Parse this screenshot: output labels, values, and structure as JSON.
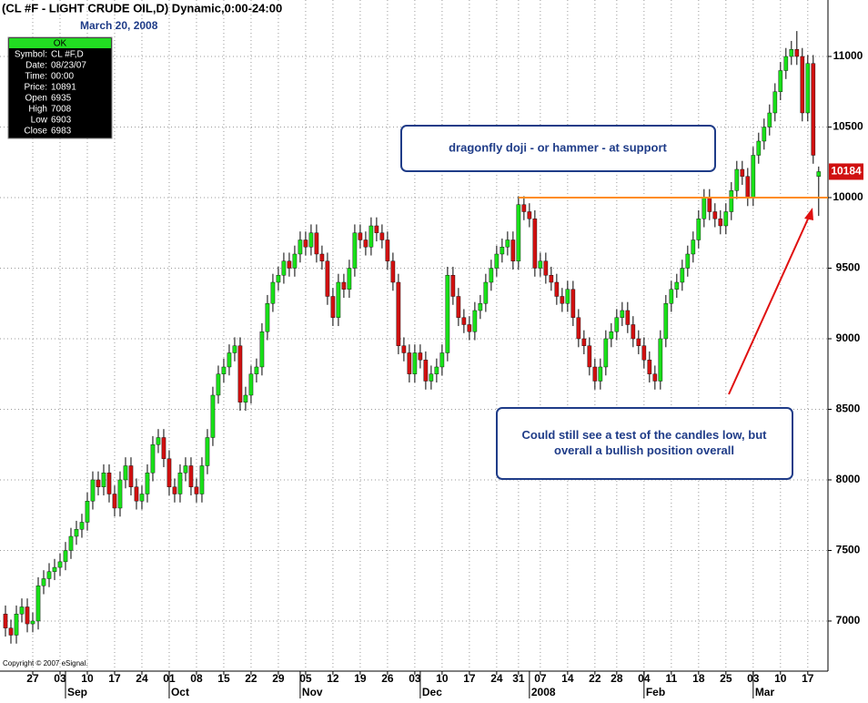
{
  "chart_data": {
    "type": "candlestick",
    "title": "(CL #F - LIGHT CRUDE OIL,D) Dynamic,0:00-24:00",
    "subtitle": "March 20, 2008",
    "copyright": "Copyright © 2007 eSignal.",
    "info_box": {
      "header": "OK",
      "rows": [
        {
          "label": "Symbol:",
          "value": "CL #F,D"
        },
        {
          "label": "Date:",
          "value": "08/23/07"
        },
        {
          "label": "Time:",
          "value": "00:00"
        },
        {
          "label": "Price:",
          "value": 10891
        },
        {
          "label": "Open",
          "value": 6935
        },
        {
          "label": "High",
          "value": 7008
        },
        {
          "label": "Low",
          "value": 6903
        },
        {
          "label": "Close",
          "value": 6983
        }
      ]
    },
    "annotations": [
      {
        "lines": [
          "dragonfly doji - or hammer - at support"
        ]
      },
      {
        "lines": [
          "Could still see a test of the candles low, but",
          "overall a bullish position overall"
        ]
      }
    ],
    "last_price": 10184,
    "support_line": {
      "value": 10000,
      "color": "#ff8c1a"
    },
    "up_color": "#19e019",
    "down_color": "#d01010",
    "ylim": [
      6645,
      11400
    ],
    "yticks": [
      7000,
      7500,
      8000,
      8500,
      9000,
      9500,
      10000,
      10500,
      11000
    ],
    "xlim": [
      -1,
      150.7
    ],
    "xticks": [
      {
        "value": 5,
        "label": "27"
      },
      {
        "value": 10,
        "label": "03"
      },
      {
        "value": 15,
        "label": "10"
      },
      {
        "value": 20,
        "label": "17"
      },
      {
        "value": 25,
        "label": "24"
      },
      {
        "value": 30,
        "label": "01"
      },
      {
        "value": 35,
        "label": "08"
      },
      {
        "value": 40,
        "label": "15"
      },
      {
        "value": 45,
        "label": "22"
      },
      {
        "value": 50,
        "label": "29"
      },
      {
        "value": 55,
        "label": "05"
      },
      {
        "value": 60,
        "label": "12"
      },
      {
        "value": 65,
        "label": "19"
      },
      {
        "value": 70,
        "label": "26"
      },
      {
        "value": 75,
        "label": "03"
      },
      {
        "value": 80,
        "label": "10"
      },
      {
        "value": 85,
        "label": "17"
      },
      {
        "value": 90,
        "label": "24"
      },
      {
        "value": 94,
        "label": "31"
      },
      {
        "value": 98,
        "label": "07"
      },
      {
        "value": 103,
        "label": "14"
      },
      {
        "value": 108,
        "label": "22"
      },
      {
        "value": 112,
        "label": "28"
      },
      {
        "value": 117,
        "label": "04"
      },
      {
        "value": 122,
        "label": "11"
      },
      {
        "value": 127,
        "label": "18"
      },
      {
        "value": 132,
        "label": "25"
      },
      {
        "value": 137,
        "label": "03"
      },
      {
        "value": 142,
        "label": "10"
      },
      {
        "value": 147,
        "label": "17"
      }
    ],
    "month_ticks": [
      {
        "value": 11,
        "label": "Sep"
      },
      {
        "value": 30,
        "label": "Oct"
      },
      {
        "value": 54,
        "label": "Nov"
      },
      {
        "value": 76,
        "label": "Dec"
      },
      {
        "value": 96,
        "label": "2008"
      },
      {
        "value": 117,
        "label": "Feb"
      },
      {
        "value": 137,
        "label": "Mar"
      }
    ],
    "open": [
      7050,
      6950,
      6900,
      7050,
      7100,
      6980,
      7000,
      7250,
      7300,
      7350,
      7380,
      7420,
      7500,
      7600,
      7650,
      7700,
      7850,
      8000,
      7950,
      8050,
      7900,
      7800,
      8000,
      8100,
      7950,
      7850,
      7900,
      8050,
      8250,
      8300,
      8150,
      7950,
      7900,
      8050,
      8100,
      7950,
      7900,
      8100,
      8300,
      8600,
      8750,
      8800,
      8900,
      8950,
      8550,
      8600,
      8750,
      8800,
      9050,
      9250,
      9400,
      9450,
      9550,
      9500,
      9600,
      9700,
      9650,
      9750,
      9600,
      9550,
      9300,
      9150,
      9400,
      9350,
      9500,
      9750,
      9700,
      9650,
      9800,
      9750,
      9700,
      9550,
      9400,
      8950,
      8900,
      8750,
      8900,
      8850,
      8700,
      8750,
      8800,
      8900,
      9450,
      9300,
      9150,
      9100,
      9050,
      9200,
      9250,
      9400,
      9500,
      9600,
      9650,
      9700,
      9550,
      9950,
      9900,
      9850,
      9500,
      9550,
      9450,
      9400,
      9300,
      9250,
      9350,
      9150,
      9000,
      8950,
      8800,
      8700,
      8800,
      9000,
      9050,
      9150,
      9200,
      9100,
      9000,
      8950,
      8850,
      8750,
      8700,
      9000,
      9250,
      9350,
      9400,
      9500,
      9600,
      9700,
      9850,
      10000,
      9900,
      9850,
      9800,
      9900,
      10050,
      10200,
      10150,
      10000,
      10300,
      10400,
      10500,
      10600,
      10750,
      10900,
      11000,
      11050,
      11000,
      10600,
      10950,
      10150
    ],
    "high": [
      7110,
      7010,
      7110,
      7160,
      7160,
      7060,
      7310,
      7360,
      7410,
      7440,
      7480,
      7560,
      7660,
      7710,
      7760,
      7910,
      8060,
      8060,
      8110,
      8110,
      7960,
      8060,
      8160,
      8160,
      8010,
      7960,
      8110,
      8310,
      8360,
      8360,
      8210,
      8010,
      8110,
      8160,
      8160,
      8010,
      8160,
      8360,
      8660,
      8810,
      8860,
      8960,
      9010,
      9010,
      8660,
      8810,
      8860,
      9110,
      9310,
      9460,
      9510,
      9610,
      9610,
      9660,
      9760,
      9760,
      9810,
      9810,
      9660,
      9610,
      9360,
      9460,
      9460,
      9560,
      9810,
      9810,
      9760,
      9860,
      9860,
      9810,
      9760,
      9610,
      9460,
      9010,
      8960,
      8960,
      8960,
      8910,
      8810,
      8860,
      8960,
      9510,
      9510,
      9360,
      9210,
      9160,
      9260,
      9310,
      9460,
      9560,
      9660,
      9710,
      9760,
      9760,
      10010,
      10010,
      9960,
      9910,
      9610,
      9610,
      9510,
      9460,
      9360,
      9410,
      9410,
      9210,
      9060,
      9010,
      8860,
      8860,
      9060,
      9110,
      9210,
      9260,
      9260,
      9160,
      9060,
      9010,
      8910,
      8810,
      9060,
      9310,
      9410,
      9460,
      9560,
      9660,
      9760,
      9910,
      10060,
      10060,
      9960,
      9910,
      9960,
      10110,
      10260,
      10260,
      10210,
      10360,
      10460,
      10560,
      10660,
      10810,
      10960,
      11060,
      11110,
      11180,
      11060,
      11010,
      11010,
      10220
    ],
    "low": [
      6890,
      6840,
      6840,
      6990,
      6920,
      6920,
      6940,
      7190,
      7240,
      7290,
      7320,
      7360,
      7440,
      7540,
      7590,
      7640,
      7790,
      7890,
      7890,
      7840,
      7740,
      7740,
      7940,
      7890,
      7790,
      7790,
      7840,
      7990,
      8190,
      8090,
      7890,
      7840,
      7840,
      7990,
      7890,
      7840,
      7840,
      8040,
      8240,
      8540,
      8690,
      8740,
      8840,
      8490,
      8490,
      8540,
      8690,
      8740,
      8990,
      9190,
      9340,
      9390,
      9440,
      9440,
      9540,
      9590,
      9590,
      9540,
      9490,
      9240,
      9090,
      9090,
      9290,
      9290,
      9440,
      9640,
      9590,
      9590,
      9690,
      9640,
      9490,
      9340,
      8890,
      8840,
      8690,
      8690,
      8790,
      8640,
      8640,
      8690,
      8740,
      8840,
      9240,
      9090,
      9040,
      8990,
      8990,
      9140,
      9190,
      9340,
      9440,
      9540,
      9590,
      9490,
      9490,
      9840,
      9790,
      9440,
      9440,
      9390,
      9340,
      9240,
      9190,
      9190,
      9090,
      8940,
      8890,
      8740,
      8640,
      8640,
      8740,
      8940,
      8990,
      9090,
      9040,
      8940,
      8890,
      8790,
      8690,
      8640,
      8640,
      8940,
      9190,
      9290,
      9340,
      9440,
      9540,
      9640,
      9790,
      9840,
      9790,
      9740,
      9740,
      9840,
      9990,
      10090,
      9940,
      9940,
      10240,
      10340,
      10440,
      10540,
      10690,
      10840,
      10940,
      10940,
      10540,
      10540,
      10240,
      9870
    ],
    "close": [
      6950,
      6900,
      7050,
      7100,
      6980,
      7000,
      7250,
      7300,
      7350,
      7380,
      7420,
      7500,
      7600,
      7650,
      7700,
      7850,
      8000,
      7950,
      8050,
      7900,
      7800,
      8000,
      8100,
      7950,
      7850,
      7900,
      8050,
      8250,
      8300,
      8150,
      7950,
      7900,
      8050,
      8100,
      7950,
      7900,
      8100,
      8300,
      8600,
      8750,
      8800,
      8900,
      8950,
      8550,
      8600,
      8750,
      8800,
      9050,
      9250,
      9400,
      9450,
      9550,
      9500,
      9600,
      9700,
      9650,
      9750,
      9600,
      9550,
      9300,
      9150,
      9400,
      9350,
      9500,
      9750,
      9700,
      9650,
      9800,
      9750,
      9700,
      9550,
      9400,
      8950,
      8900,
      8750,
      8900,
      8850,
      8700,
      8750,
      8800,
      8900,
      9450,
      9300,
      9150,
      9100,
      9050,
      9200,
      9250,
      9400,
      9500,
      9600,
      9650,
      9700,
      9550,
      9950,
      9900,
      9850,
      9500,
      9550,
      9450,
      9400,
      9300,
      9250,
      9350,
      9150,
      9000,
      8950,
      8800,
      8700,
      8800,
      9000,
      9050,
      9150,
      9200,
      9100,
      9000,
      8950,
      8850,
      8750,
      8700,
      9000,
      9250,
      9350,
      9400,
      9500,
      9600,
      9700,
      9850,
      10000,
      9900,
      9850,
      9800,
      9900,
      10050,
      10200,
      10150,
      10000,
      10300,
      10400,
      10500,
      10600,
      10750,
      10900,
      11000,
      11050,
      11000,
      10600,
      10950,
      10300,
      10184
    ]
  }
}
